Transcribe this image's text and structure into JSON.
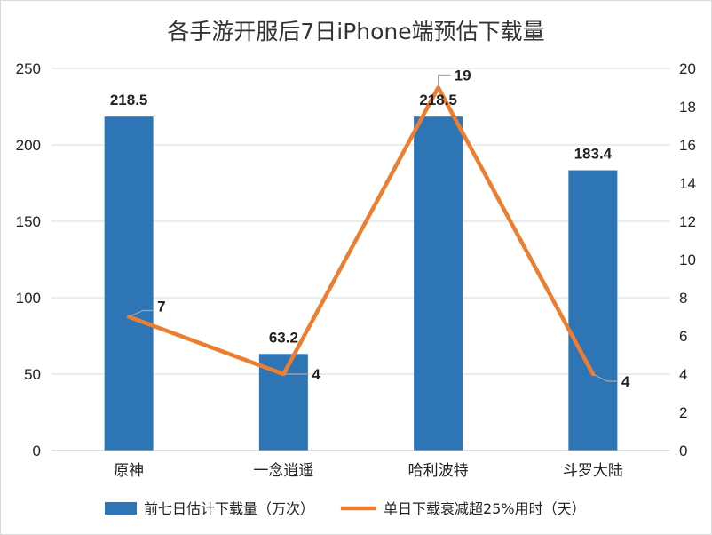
{
  "chart_data": {
    "type": "bar+line",
    "title": "各手游开服后7日iPhone端预估下载量",
    "categories": [
      "原神",
      "一念逍遥",
      "哈利波特",
      "斗罗大陆"
    ],
    "series": [
      {
        "name": "前七日估计下载量（万次）",
        "type": "bar",
        "axis": "left",
        "values": [
          218.5,
          63.2,
          218.5,
          183.4
        ],
        "color": "#2e75b6"
      },
      {
        "name": "单日下载衰减超25%用时（天）",
        "type": "line",
        "axis": "right",
        "values": [
          7,
          4,
          19,
          4
        ],
        "color": "#ed7d31"
      }
    ],
    "y_left": {
      "min": 0,
      "max": 250,
      "step": 50,
      "ticks": [
        "0",
        "50",
        "100",
        "150",
        "200",
        "250"
      ]
    },
    "y_right": {
      "min": 0,
      "max": 20,
      "step": 2,
      "ticks": [
        "0",
        "2",
        "4",
        "6",
        "8",
        "10",
        "12",
        "14",
        "16",
        "18",
        "20"
      ]
    },
    "grid": true,
    "legend_position": "bottom"
  }
}
